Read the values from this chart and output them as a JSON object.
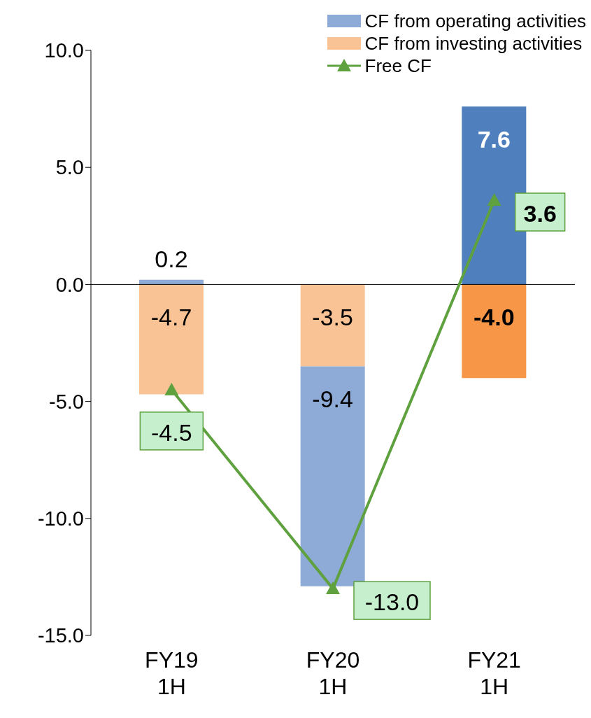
{
  "chart_data": {
    "type": "bar",
    "stacked": true,
    "categories": [
      "FY19\n1H",
      "FY20\n1H",
      "FY21\n1H"
    ],
    "series": [
      {
        "name": "CF from investing activities",
        "color": "#f9c396",
        "colors": [
          "#f9c396",
          "#f9c396",
          "#f79646"
        ],
        "values": [
          -4.7,
          -3.5,
          -4.0
        ],
        "value_labels": [
          "-4.7",
          "-3.5",
          "-4.0"
        ]
      },
      {
        "name": "CF from operating activities",
        "color": "#8eaad6",
        "colors": [
          "#8eaad6",
          "#8eaad6",
          "#4f7fbd"
        ],
        "values": [
          0.2,
          -9.4,
          7.6
        ],
        "value_labels": [
          "0.2",
          "-9.4",
          "7.6"
        ]
      },
      {
        "name": "Free CF",
        "type": "line",
        "color": "#5ea13e",
        "marker": "triangle",
        "values": [
          -4.5,
          -13.0,
          3.6
        ],
        "value_labels": [
          "-4.5",
          "-13.0",
          "3.6"
        ]
      }
    ],
    "ylim": [
      -15,
      10
    ],
    "yticks": [
      {
        "value": -15,
        "label": "-15.0"
      },
      {
        "value": -10,
        "label": "-10.0"
      },
      {
        "value": -5,
        "label": "-5.0"
      },
      {
        "value": 0,
        "label": "0.0"
      },
      {
        "value": 5,
        "label": "5.0"
      },
      {
        "value": 10,
        "label": "10.0"
      }
    ],
    "legend": "top right"
  }
}
